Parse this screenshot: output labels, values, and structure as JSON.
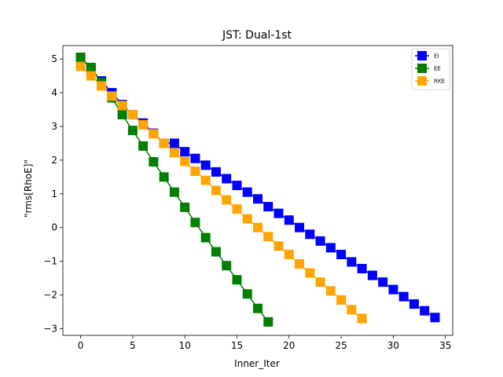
{
  "chart_data": {
    "type": "line",
    "title": "JST: Dual-1st",
    "xlabel": "Inner_Iter",
    "ylabel": "\"rms[RhoE]\"",
    "xlim": [
      -1.7,
      35.7
    ],
    "ylim": [
      -3.2,
      5.4
    ],
    "xticks": [
      0,
      5,
      10,
      15,
      20,
      25,
      30,
      35
    ],
    "yticks": [
      -3,
      -2,
      -1,
      0,
      1,
      2,
      3,
      4,
      5
    ],
    "grid": false,
    "legend_position": "top-right",
    "marker": "square",
    "series": [
      {
        "name": "EI",
        "color": "#0000ff",
        "x": [
          0,
          1,
          2,
          3,
          4,
          5,
          6,
          7,
          8,
          9,
          10,
          11,
          12,
          13,
          14,
          15,
          16,
          17,
          18,
          19,
          20,
          21,
          22,
          23,
          24,
          25,
          26,
          27,
          28,
          29,
          30,
          31,
          32,
          33,
          34
        ],
        "values": [
          5.05,
          4.7,
          4.35,
          4.0,
          3.65,
          3.35,
          3.1,
          2.8,
          2.5,
          2.5,
          2.25,
          2.05,
          1.85,
          1.65,
          1.45,
          1.25,
          1.05,
          0.85,
          0.62,
          0.42,
          0.22,
          0.0,
          -0.2,
          -0.4,
          -0.6,
          -0.8,
          -1.02,
          -1.22,
          -1.42,
          -1.62,
          -1.84,
          -2.05,
          -2.27,
          -2.47,
          -2.67
        ]
      },
      {
        "name": "EE",
        "color": "#008000",
        "x": [
          0,
          1,
          2,
          3,
          4,
          5,
          6,
          7,
          8,
          9,
          10,
          11,
          12,
          13,
          14,
          15,
          16,
          17,
          18
        ],
        "values": [
          5.05,
          4.75,
          4.3,
          3.85,
          3.35,
          2.88,
          2.42,
          1.95,
          1.5,
          1.05,
          0.6,
          0.15,
          -0.3,
          -0.72,
          -1.13,
          -1.55,
          -1.97,
          -2.4,
          -2.8
        ]
      },
      {
        "name": "RKE",
        "color": "#ffa500",
        "x": [
          0,
          1,
          2,
          3,
          4,
          5,
          6,
          7,
          8,
          9,
          10,
          11,
          12,
          13,
          14,
          15,
          16,
          17,
          18,
          19,
          20,
          21,
          22,
          23,
          24,
          25,
          26,
          27
        ],
        "values": [
          4.78,
          4.5,
          4.2,
          3.9,
          3.62,
          3.35,
          3.05,
          2.78,
          2.5,
          2.22,
          1.96,
          1.67,
          1.4,
          1.1,
          0.82,
          0.55,
          0.26,
          0.0,
          -0.27,
          -0.55,
          -0.8,
          -1.08,
          -1.35,
          -1.62,
          -1.88,
          -2.15,
          -2.44,
          -2.7
        ]
      }
    ]
  }
}
